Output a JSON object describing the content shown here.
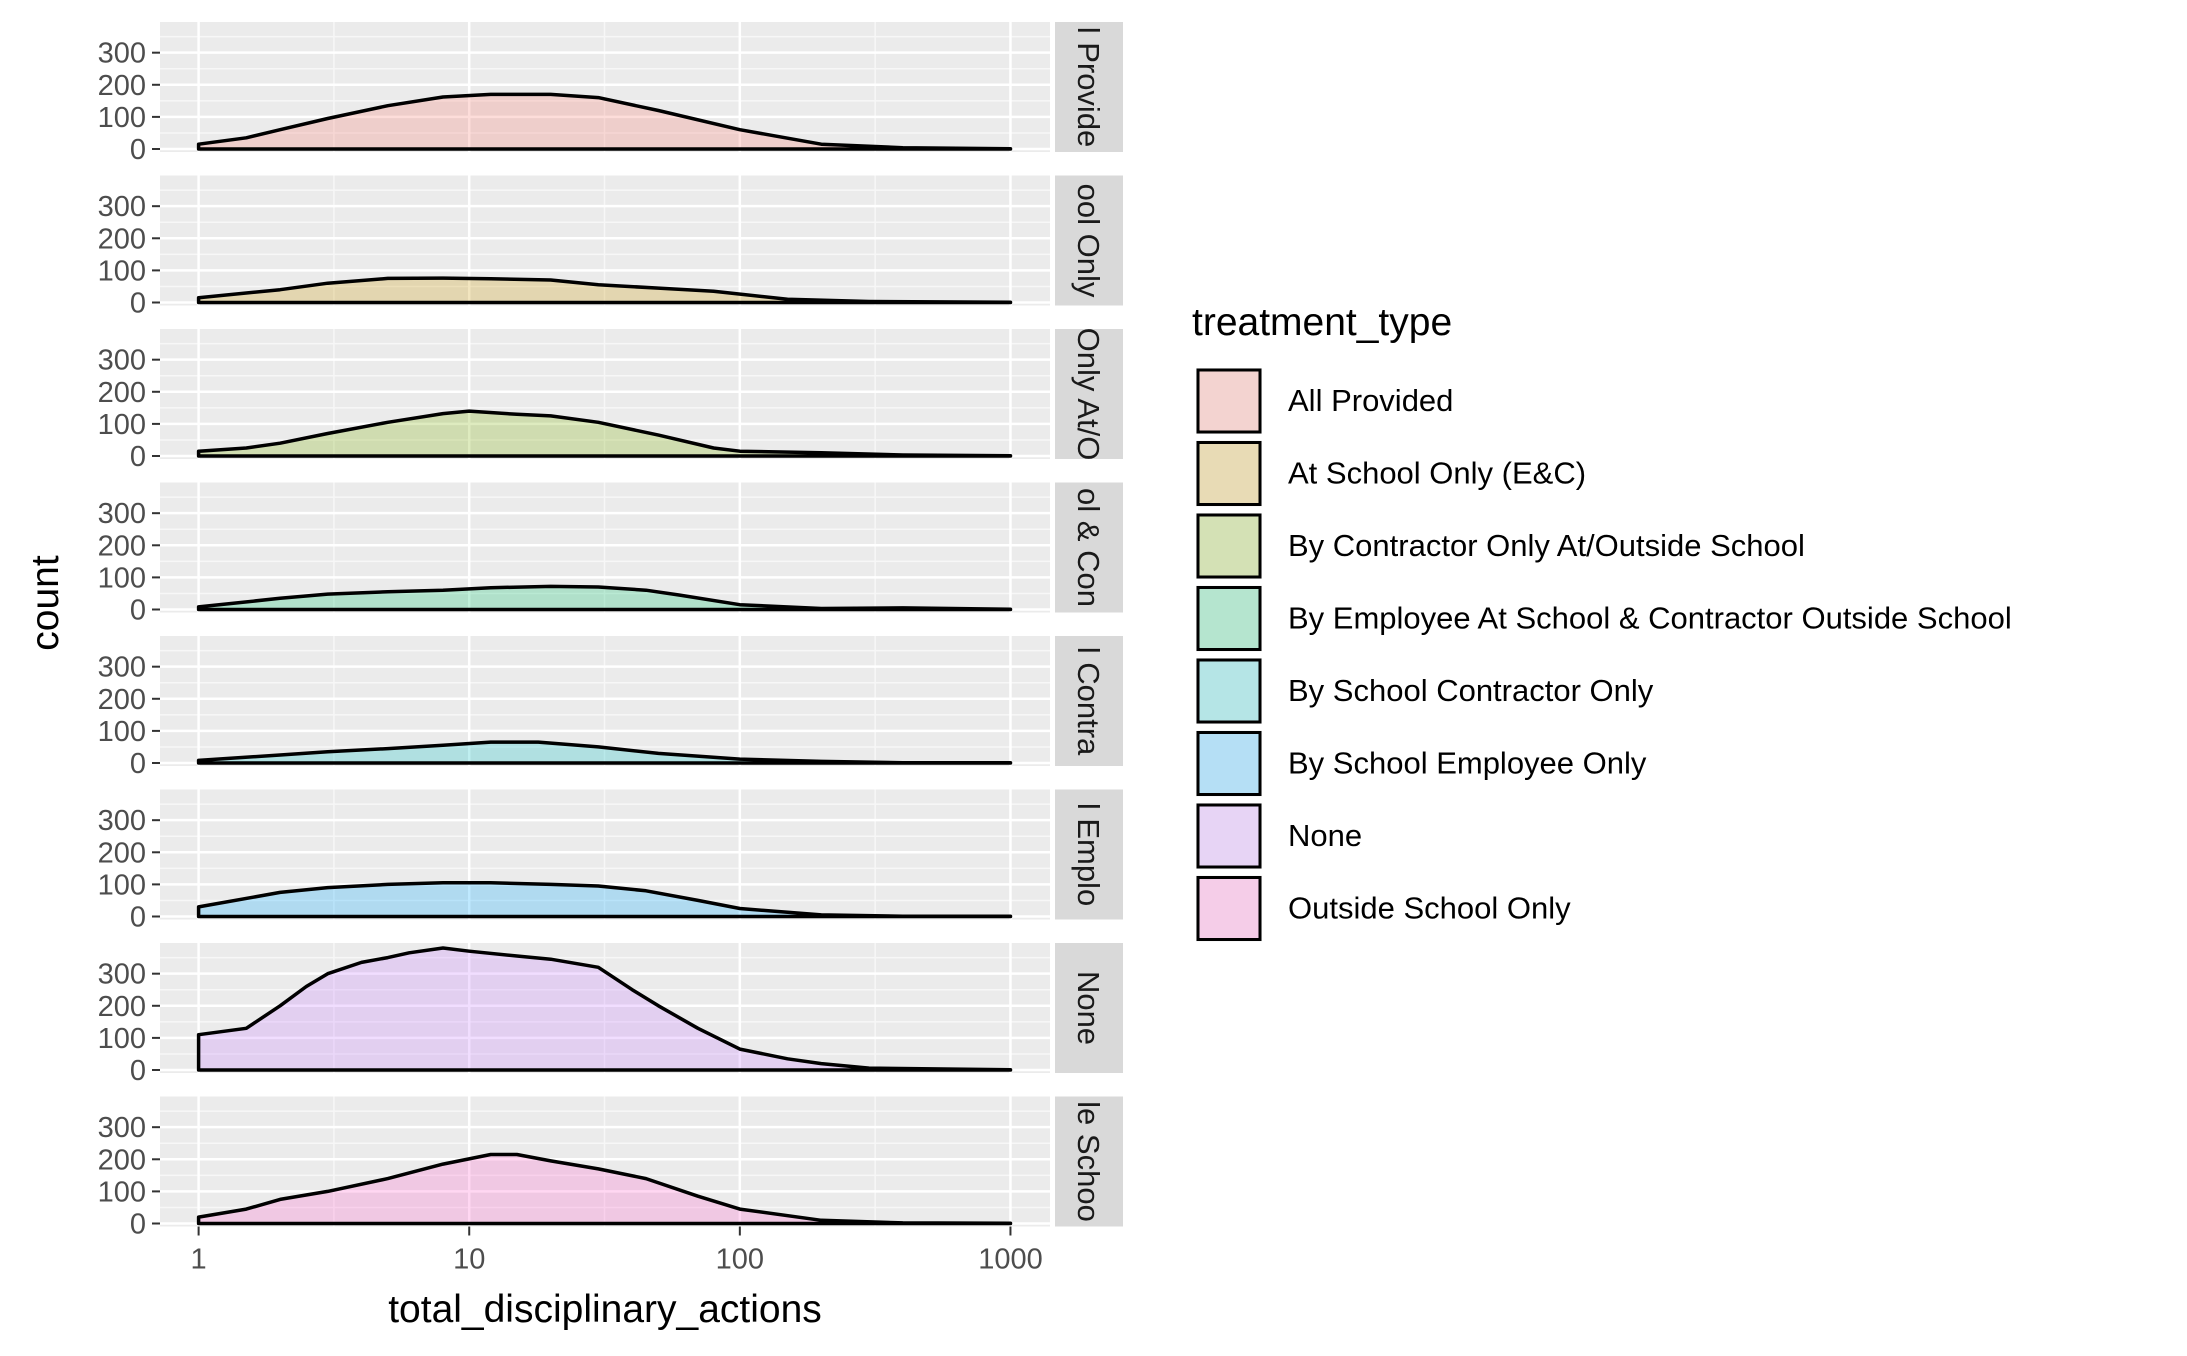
{
  "chart_data": {
    "type": "area",
    "facet_variable": "treatment_type",
    "xlabel": "total_disciplinary_actions",
    "ylabel": "count",
    "x_scale": "log10",
    "xlim": [
      0.72,
      1400
    ],
    "ylim": [
      0,
      380
    ],
    "x_ticks": [
      1,
      10,
      100,
      1000
    ],
    "x_tick_labels": [
      "1",
      "10",
      "100",
      "1000"
    ],
    "y_ticks": [
      0,
      100,
      200,
      300
    ],
    "y_tick_labels": [
      "0",
      "100",
      "200",
      "300"
    ],
    "legend": {
      "title": "treatment_type",
      "position": "right",
      "entries": [
        "All Provided",
        "At School Only (E&C)",
        "By Contractor Only At/Outside School",
        "By Employee At School & Contractor Outside School",
        "By School Contractor Only",
        "By School Employee Only",
        "None",
        "Outside School Only"
      ]
    },
    "panels": [
      {
        "name": "All Provided",
        "strip_label": "l Provide",
        "color": "#F8766D",
        "points": [
          [
            1,
            15
          ],
          [
            1.5,
            35
          ],
          [
            2,
            60
          ],
          [
            3,
            95
          ],
          [
            5,
            135
          ],
          [
            8,
            162
          ],
          [
            12,
            170
          ],
          [
            20,
            170
          ],
          [
            30,
            160
          ],
          [
            50,
            120
          ],
          [
            100,
            60
          ],
          [
            200,
            15
          ],
          [
            400,
            4
          ],
          [
            1000,
            1
          ]
        ]
      },
      {
        "name": "At School Only (E&C)",
        "strip_label": "ool Only",
        "color": "#CD9600",
        "points": [
          [
            1,
            15
          ],
          [
            2,
            40
          ],
          [
            3,
            60
          ],
          [
            5,
            75
          ],
          [
            8,
            76
          ],
          [
            12,
            74
          ],
          [
            20,
            70
          ],
          [
            30,
            55
          ],
          [
            50,
            45
          ],
          [
            80,
            35
          ],
          [
            150,
            10
          ],
          [
            300,
            3
          ],
          [
            1000,
            1
          ]
        ]
      },
      {
        "name": "By Contractor Only At/Outside School",
        "strip_label": "Only At/O",
        "color": "#7CAE00",
        "points": [
          [
            1,
            15
          ],
          [
            1.5,
            25
          ],
          [
            2,
            40
          ],
          [
            3,
            70
          ],
          [
            5,
            105
          ],
          [
            8,
            132
          ],
          [
            10,
            140
          ],
          [
            15,
            130
          ],
          [
            20,
            125
          ],
          [
            30,
            105
          ],
          [
            50,
            65
          ],
          [
            80,
            25
          ],
          [
            100,
            15
          ],
          [
            200,
            10
          ],
          [
            400,
            3
          ],
          [
            1000,
            1
          ]
        ]
      },
      {
        "name": "By Employee At School & Contractor Outside School",
        "strip_label": "ol & Con",
        "color": "#00BE67",
        "points": [
          [
            1,
            8
          ],
          [
            2,
            35
          ],
          [
            3,
            48
          ],
          [
            5,
            55
          ],
          [
            8,
            60
          ],
          [
            12,
            68
          ],
          [
            20,
            72
          ],
          [
            30,
            70
          ],
          [
            45,
            60
          ],
          [
            60,
            45
          ],
          [
            100,
            15
          ],
          [
            200,
            3
          ],
          [
            400,
            5
          ],
          [
            1000,
            1
          ]
        ]
      },
      {
        "name": "By School Contractor Only",
        "strip_label": "l Contra",
        "color": "#00BFC4",
        "points": [
          [
            1,
            8
          ],
          [
            2,
            25
          ],
          [
            3,
            35
          ],
          [
            5,
            45
          ],
          [
            8,
            55
          ],
          [
            12,
            65
          ],
          [
            18,
            65
          ],
          [
            30,
            50
          ],
          [
            50,
            30
          ],
          [
            100,
            12
          ],
          [
            200,
            5
          ],
          [
            400,
            1
          ],
          [
            1000,
            1
          ]
        ]
      },
      {
        "name": "By School Employee Only",
        "strip_label": "l Emplo",
        "color": "#00A9FF",
        "points": [
          [
            1,
            30
          ],
          [
            2,
            75
          ],
          [
            3,
            90
          ],
          [
            5,
            100
          ],
          [
            8,
            105
          ],
          [
            12,
            105
          ],
          [
            20,
            100
          ],
          [
            30,
            95
          ],
          [
            45,
            80
          ],
          [
            70,
            50
          ],
          [
            100,
            25
          ],
          [
            200,
            5
          ],
          [
            400,
            1
          ],
          [
            1000,
            1
          ]
        ]
      },
      {
        "name": "None",
        "strip_label": "None",
        "color": "#C77CFF",
        "points": [
          [
            1,
            110
          ],
          [
            1.5,
            130
          ],
          [
            2,
            200
          ],
          [
            2.5,
            260
          ],
          [
            3,
            300
          ],
          [
            4,
            335
          ],
          [
            5,
            350
          ],
          [
            6,
            365
          ],
          [
            8,
            380
          ],
          [
            10,
            370
          ],
          [
            15,
            355
          ],
          [
            20,
            345
          ],
          [
            30,
            320
          ],
          [
            40,
            250
          ],
          [
            50,
            200
          ],
          [
            70,
            130
          ],
          [
            100,
            65
          ],
          [
            150,
            35
          ],
          [
            200,
            20
          ],
          [
            300,
            6
          ],
          [
            1000,
            1
          ]
        ]
      },
      {
        "name": "Outside School Only",
        "strip_label": "le Schoo",
        "color": "#FF61CC",
        "points": [
          [
            1,
            20
          ],
          [
            1.5,
            45
          ],
          [
            2,
            75
          ],
          [
            3,
            100
          ],
          [
            5,
            140
          ],
          [
            8,
            185
          ],
          [
            12,
            215
          ],
          [
            15,
            215
          ],
          [
            20,
            195
          ],
          [
            30,
            170
          ],
          [
            45,
            140
          ],
          [
            70,
            85
          ],
          [
            100,
            45
          ],
          [
            200,
            10
          ],
          [
            400,
            2
          ],
          [
            1000,
            1
          ]
        ]
      }
    ]
  }
}
